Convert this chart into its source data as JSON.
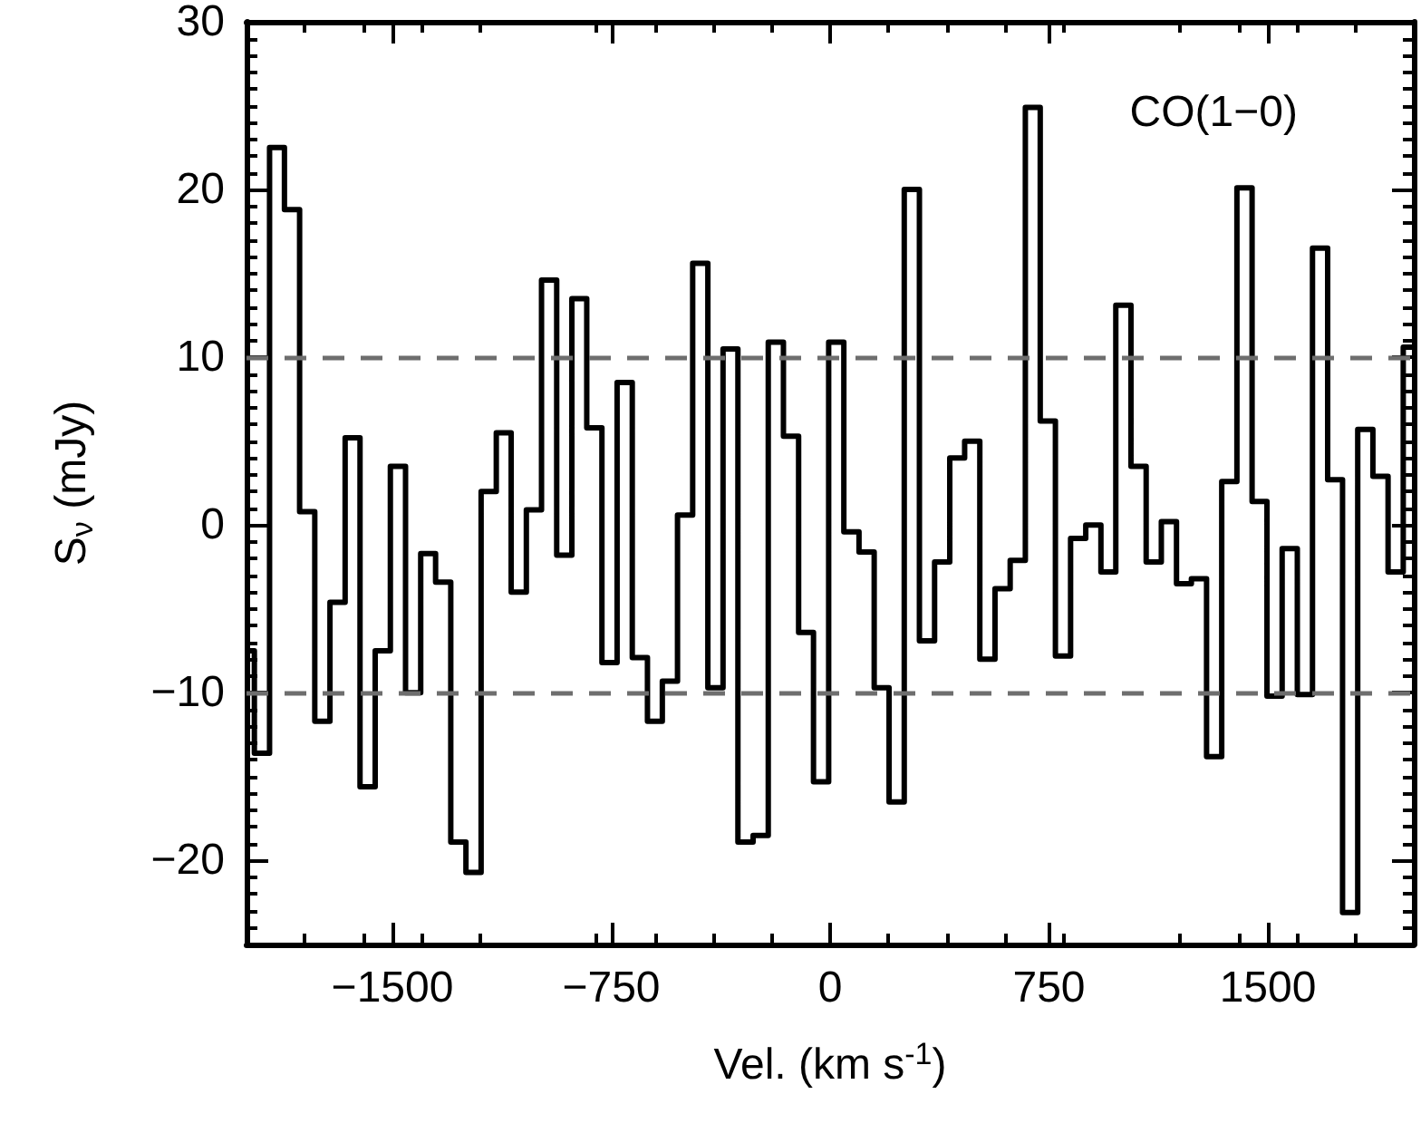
{
  "chart_data": {
    "type": "histogram",
    "xlabel": "Vel. (km s$^{-1}$)",
    "ylabel": "S$_{ν}$ (mJy)",
    "annotations": [
      "CO(1−0)"
    ],
    "bins": [
      -2000,
      -1973,
      -1921,
      -1870,
      -1818,
      -1766,
      -1714,
      -1662,
      -1611,
      -1559,
      -1507,
      -1455,
      -1403,
      -1352,
      -1300,
      -1248,
      -1196,
      -1144,
      -1093,
      -1041,
      -989,
      -937,
      -885,
      -834,
      -782,
      -730,
      -678,
      -626,
      -575,
      -523,
      -471,
      -419,
      -367,
      -316,
      -264,
      -212,
      -160,
      -108,
      -57,
      -5,
      47,
      99,
      151,
      202,
      254,
      306,
      358,
      410,
      461,
      513,
      565,
      617,
      669,
      720,
      772,
      824,
      876,
      928,
      979,
      1031,
      1083,
      1135,
      1187,
      1238,
      1290,
      1342,
      1394,
      1446,
      1497,
      1549,
      1601,
      1653,
      1705,
      1756,
      1808,
      1860,
      1912,
      1964,
      2000
    ],
    "values": [
      -7.5,
      -13.6,
      22.5,
      18.8,
      0.8,
      -11.7,
      -4.6,
      5.2,
      -15.6,
      -7.5,
      3.5,
      -10.0,
      -1.7,
      -3.4,
      -18.9,
      -20.7,
      2.0,
      5.5,
      -4.0,
      0.9,
      14.6,
      -1.8,
      13.5,
      5.8,
      -8.2,
      8.5,
      -7.9,
      -11.7,
      -9.3,
      0.6,
      15.6,
      -9.7,
      10.5,
      -18.9,
      -18.5,
      10.9,
      5.3,
      -6.4,
      -15.3,
      10.9,
      -0.4,
      -1.6,
      -9.7,
      -16.5,
      20.0,
      -6.9,
      -2.2,
      4.0,
      5.0,
      -8.0,
      -3.8,
      -2.1,
      24.9,
      6.2,
      -7.8,
      -0.8,
      0.0,
      -2.8,
      13.1,
      3.5,
      -2.2,
      0.2,
      -3.5,
      -3.2,
      -13.8,
      2.6,
      20.1,
      1.4,
      -10.2,
      -1.4,
      -10.1,
      16.5,
      2.7,
      -23.1,
      5.7,
      2.9,
      -2.8,
      10.6
    ],
    "color": "#000000",
    "xlim": [
      -2000,
      2000
    ],
    "xticks": [
      {
        "value": -1500,
        "label": "−1500"
      },
      {
        "value": -750,
        "label": "−750"
      },
      0,
      750,
      1500
    ],
    "ylim": [
      -25,
      30
    ],
    "yticks": [
      {
        "value": -20,
        "label": "−20"
      },
      {
        "value": -10,
        "label": "−10"
      },
      0,
      10,
      20,
      30
    ],
    "ref_lines": [
      {
        "axis": "y",
        "value": 10,
        "color": "#6e6e6e",
        "line_style": "dashed"
      },
      {
        "axis": "y",
        "value": -10,
        "color": "#6e6e6e",
        "line_style": "dashed"
      }
    ],
    "tick_labels": "xy"
  }
}
